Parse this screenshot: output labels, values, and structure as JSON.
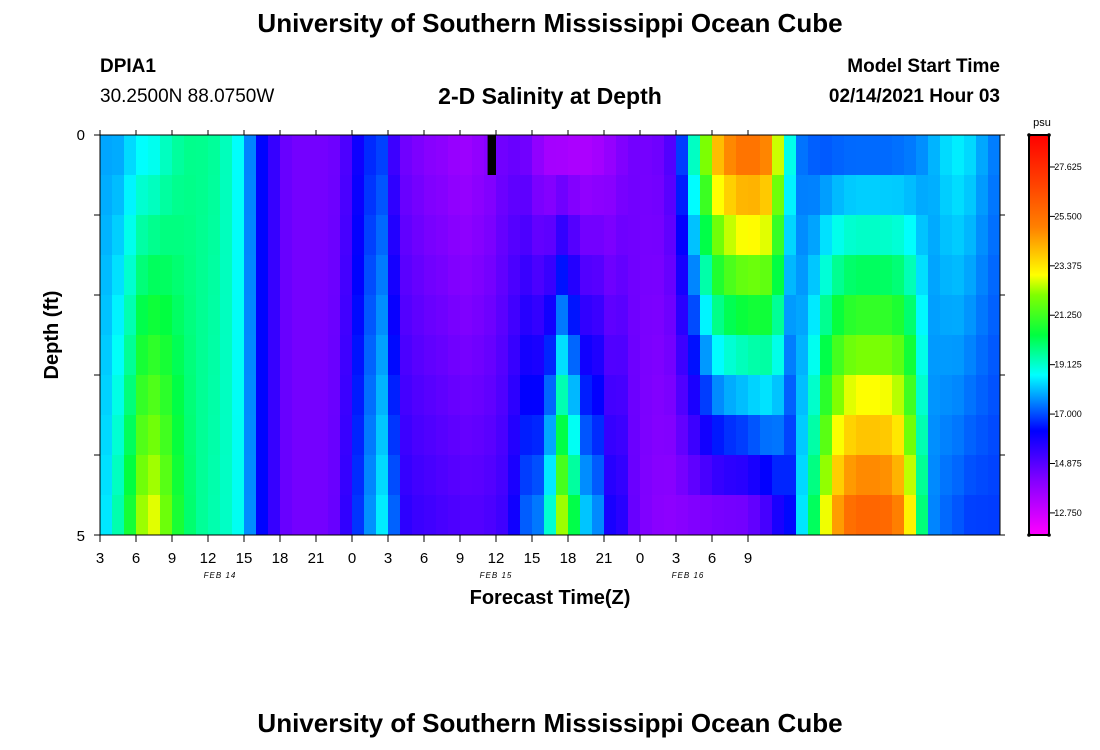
{
  "header": {
    "title": "University of Southern Mississippi Ocean Cube",
    "station": "DPIA1",
    "coords": "30.2500N 88.0750W",
    "subtitle": "2-D Salinity at Depth",
    "start_label": "Model Start Time",
    "start_value": "02/14/2021 Hour 03"
  },
  "footer": {
    "title": "University of Southern Mississippi Ocean Cube"
  },
  "chart_data": {
    "type": "heatmap",
    "xlabel": "Forecast Time(Z)",
    "ylabel": "Depth (ft)",
    "ylim": [
      0,
      5
    ],
    "y_ticks": [
      "0",
      "5"
    ],
    "x_tick_labels": [
      "3",
      "6",
      "9",
      "12",
      "15",
      "18",
      "21",
      "0",
      "3",
      "6",
      "9",
      "12",
      "15",
      "18",
      "21",
      "0",
      "3",
      "6",
      "9"
    ],
    "date_labels": [
      {
        "text": "FEB 14",
        "hour_index": 10
      },
      {
        "text": "FEB 15",
        "hour_index": 33
      },
      {
        "text": "FEB 16",
        "hour_index": 49
      }
    ],
    "x_start_hour": 3,
    "x_step_hours": 1,
    "y_layers": [
      0.25,
      0.75,
      1.25,
      1.75,
      2.25,
      2.75,
      3.25,
      3.75,
      4.25,
      4.75
    ],
    "z_range": [
      11.8,
      29.0
    ],
    "colorbar": {
      "unit": "psu",
      "ticks": [
        "12.750",
        "14.875",
        "17.000",
        "19.125",
        "21.250",
        "23.375",
        "25.500",
        "27.625"
      ]
    },
    "missing_cell": {
      "hour_index": 32,
      "layer": 0
    },
    "profiles": {
      "top": [
        17.8,
        17.8,
        18.2,
        18.5,
        18.6,
        19.1,
        19.5,
        19.7,
        19.7,
        19.6,
        19.3,
        18.7,
        17.5,
        16.3,
        15.4,
        14.6,
        14.4,
        14.4,
        14.4,
        14.5,
        15.0,
        16.0,
        16.6,
        16.8,
        15.2,
        14.4,
        14.2,
        14.0,
        13.9,
        13.7,
        13.6,
        13.8,
        14.0,
        14.4,
        14.5,
        14.3,
        13.7,
        13.2,
        13.0,
        13.0,
        13.1,
        13.3,
        13.7,
        14.1,
        14.4,
        14.4,
        14.5,
        15.0,
        17.0,
        19.5,
        22.5,
        24.6,
        25.5,
        26.0,
        26.0,
        25.5,
        23.0,
        19.0,
        17.3,
        17.0,
        16.8,
        16.8,
        16.8,
        16.8,
        16.8,
        16.8,
        16.9,
        17.1,
        17.5,
        18.0,
        18.4,
        18.6,
        18.4,
        17.9,
        17.5
      ],
      "bottom": [
        18.5,
        19.5,
        20.8,
        22.5,
        23.0,
        22.0,
        20.8,
        20.0,
        19.6,
        19.4,
        19.2,
        18.8,
        17.6,
        16.3,
        15.4,
        14.6,
        14.4,
        14.4,
        14.4,
        14.6,
        15.5,
        16.8,
        17.7,
        18.6,
        17.3,
        15.6,
        15.4,
        15.3,
        15.2,
        15.1,
        15.0,
        15.0,
        15.1,
        15.3,
        16.1,
        17.3,
        17.6,
        19.4,
        22.8,
        20.7,
        18.4,
        17.8,
        16.0,
        15.7,
        14.6,
        14.2,
        14.0,
        13.9,
        13.9,
        13.9,
        13.8,
        13.8,
        13.8,
        13.8,
        14.1,
        14.6,
        15.5,
        16.2,
        18.5,
        20.3,
        23.2,
        25.0,
        26.0,
        26.3,
        26.3,
        26.2,
        25.5,
        23.5,
        20.0,
        17.5,
        17.2,
        17.0,
        16.8,
        16.8,
        16.8
      ]
    }
  }
}
